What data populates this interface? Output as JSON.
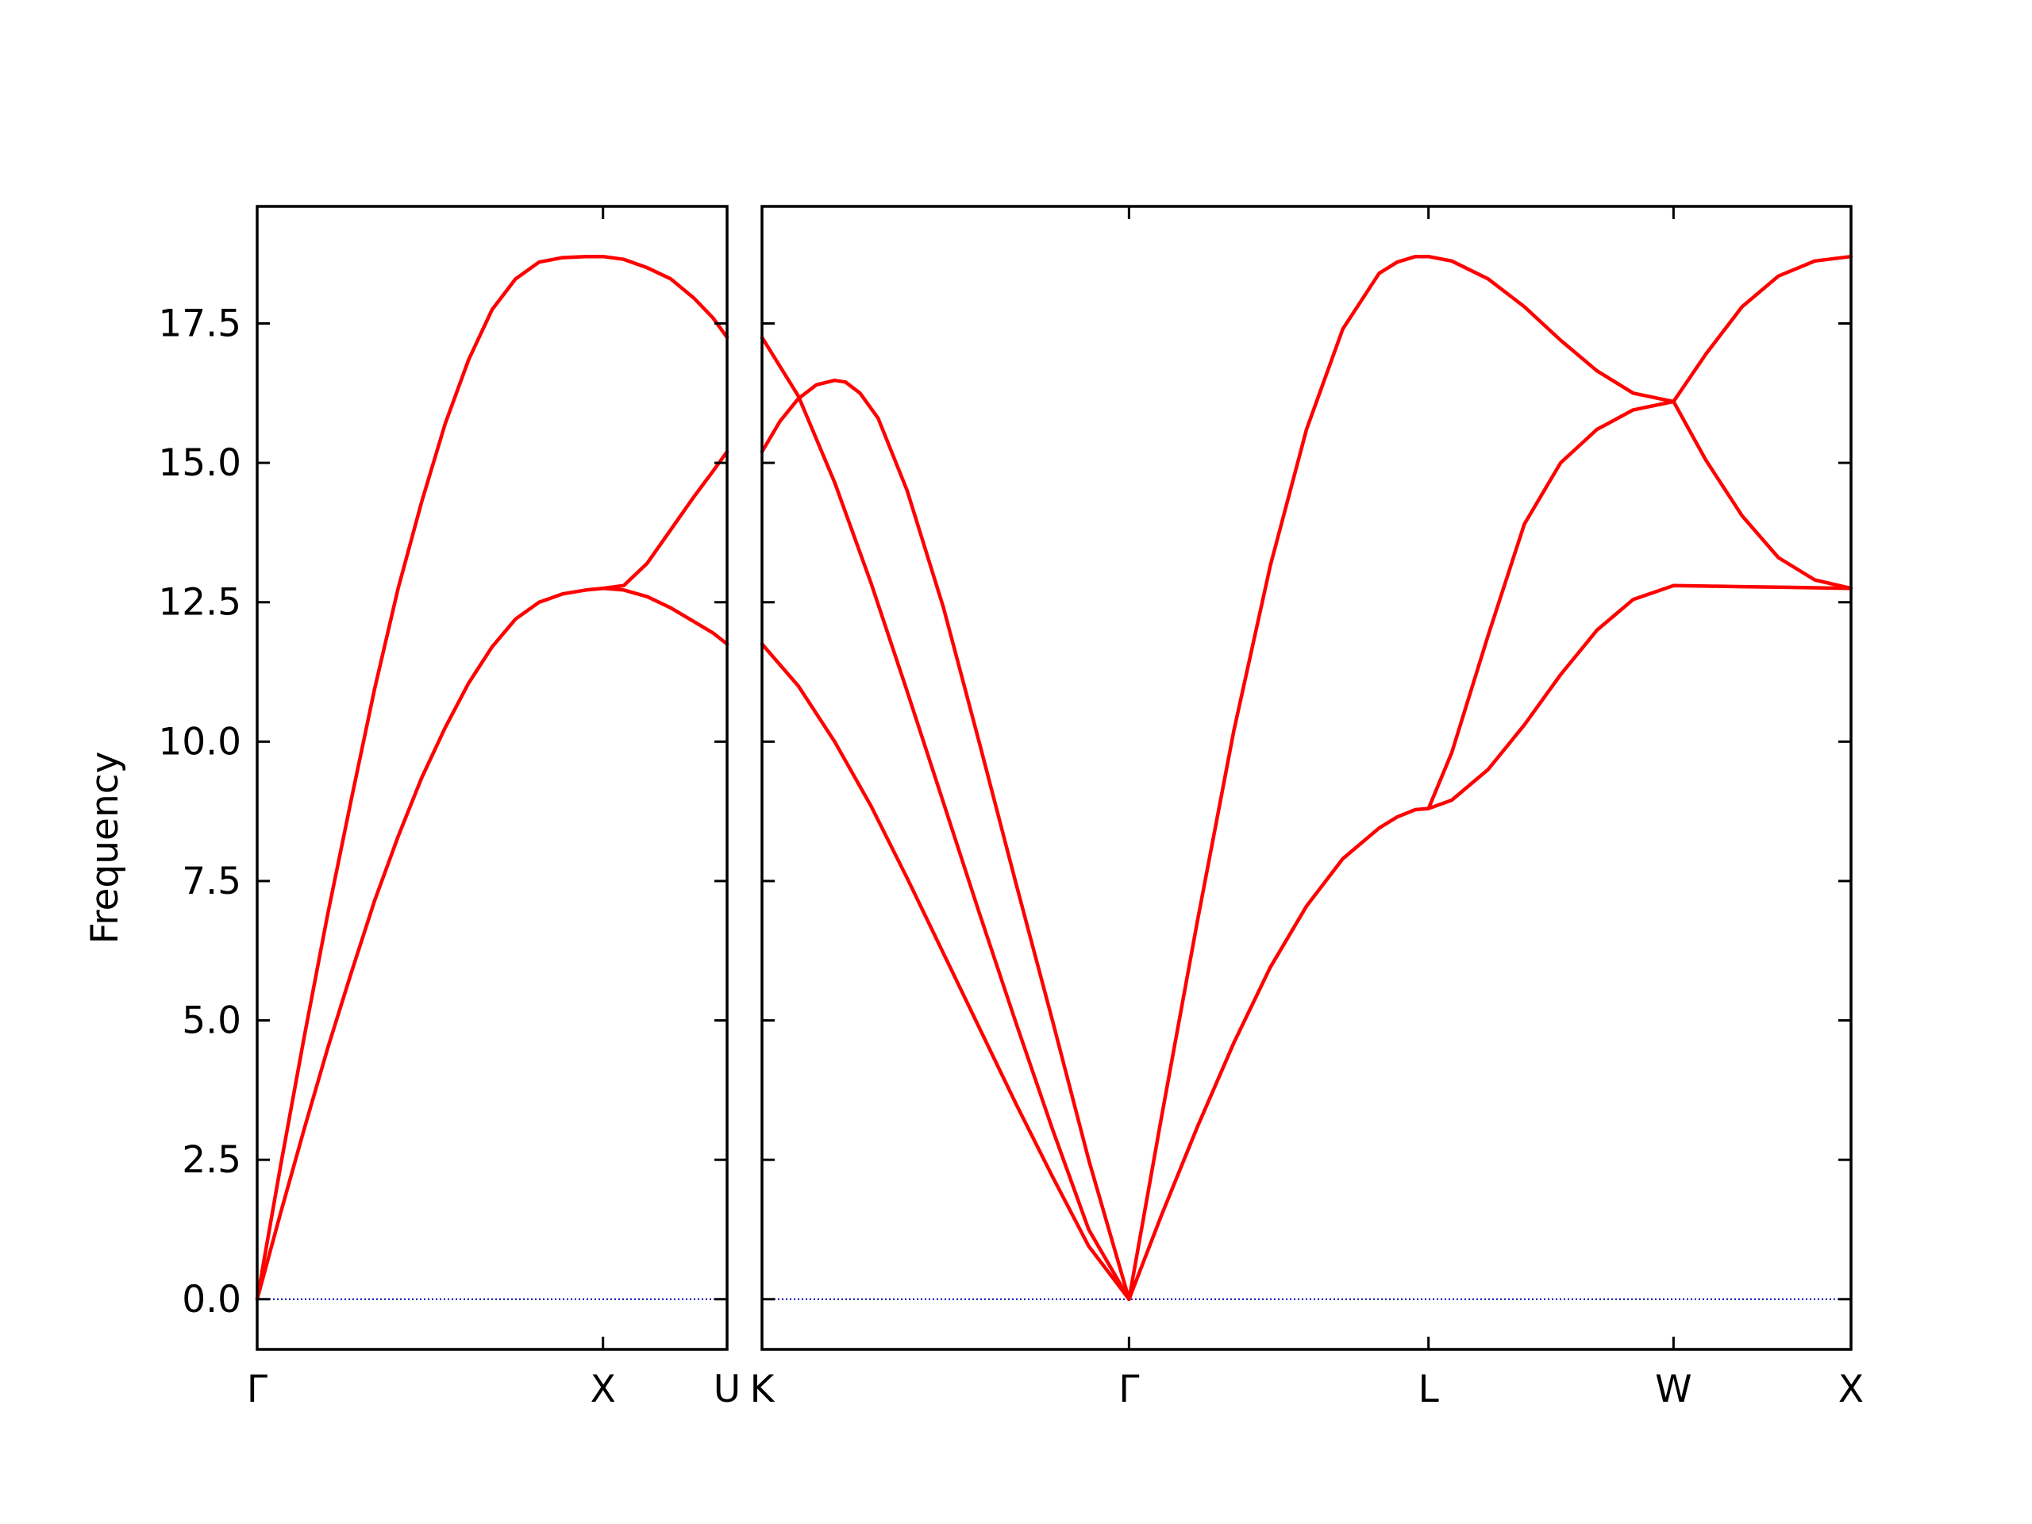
{
  "chart_data": {
    "type": "line",
    "title": "",
    "ylabel": "Frequency",
    "ylim": [
      -0.9,
      19.6
    ],
    "yticks": [
      "0.0",
      "2.5",
      "5.0",
      "7.5",
      "10.0",
      "12.5",
      "15.0",
      "17.5"
    ],
    "ytick_values": [
      0,
      2.5,
      5,
      7.5,
      10,
      12.5,
      15,
      17.5
    ],
    "grid": false,
    "legend": "none",
    "line_color": "#ff0000",
    "zero_line_color": "#0000aa",
    "zero_line": 0,
    "panels": [
      {
        "xlim": [
          0,
          1.0
        ],
        "tick_positions": [
          0,
          0.736,
          1.0
        ],
        "tick_labels": [
          "Γ",
          "X",
          "U"
        ],
        "series": [
          {
            "x": [
              0,
              0.05,
              0.1,
              0.15,
              0.2,
              0.25,
              0.3,
              0.35,
              0.4,
              0.45,
              0.5,
              0.55,
              0.6,
              0.65,
              0.7,
              0.736,
              0.78,
              0.83,
              0.88,
              0.93,
              0.97,
              1.0
            ],
            "y": [
              0,
              2.4,
              4.7,
              6.9,
              8.95,
              10.95,
              12.75,
              14.3,
              15.7,
              16.85,
              17.75,
              18.3,
              18.6,
              18.68,
              18.7,
              18.7,
              18.65,
              18.5,
              18.3,
              17.95,
              17.6,
              17.25
            ]
          },
          {
            "x": [
              0,
              0.05,
              0.1,
              0.15,
              0.2,
              0.25,
              0.3,
              0.35,
              0.4,
              0.45,
              0.5,
              0.55,
              0.6,
              0.65,
              0.7,
              0.736,
              0.78,
              0.83,
              0.88,
              0.93,
              0.97,
              1.0
            ],
            "y": [
              0,
              1.55,
              3.05,
              4.5,
              5.85,
              7.15,
              8.3,
              9.35,
              10.25,
              11.05,
              11.7,
              12.2,
              12.5,
              12.65,
              12.72,
              12.75,
              12.8,
              13.2,
              13.8,
              14.4,
              14.85,
              15.2
            ]
          },
          {
            "x": [
              0.736,
              0.78,
              0.83,
              0.88,
              0.93,
              0.97,
              1.0
            ],
            "y": [
              12.75,
              12.72,
              12.6,
              12.4,
              12.15,
              11.95,
              11.75
            ]
          }
        ]
      },
      {
        "xlim": [
          0,
          3.0
        ],
        "tick_positions": [
          0,
          1.011,
          1.836,
          2.511,
          3.0
        ],
        "tick_labels": [
          "K",
          "Γ",
          "L",
          "W",
          "X"
        ],
        "series": [
          {
            "x": [
              0,
              0.1,
              0.2,
              0.3,
              0.4,
              0.5,
              0.6,
              0.7,
              0.8,
              0.9,
              1.011
            ],
            "y": [
              17.25,
              16.2,
              14.65,
              12.85,
              10.9,
              8.9,
              6.9,
              4.95,
              3.05,
              1.25,
              0
            ]
          },
          {
            "x": [
              0,
              0.05,
              0.1,
              0.15,
              0.2,
              0.23,
              0.27,
              0.32,
              0.4,
              0.5,
              0.6,
              0.7,
              0.8,
              0.9,
              1.011
            ],
            "y": [
              15.2,
              15.75,
              16.15,
              16.4,
              16.48,
              16.45,
              16.25,
              15.8,
              14.5,
              12.4,
              9.95,
              7.45,
              5.0,
              2.5,
              0
            ]
          },
          {
            "x": [
              0,
              0.1,
              0.2,
              0.3,
              0.4,
              0.5,
              0.6,
              0.7,
              0.8,
              0.9,
              1.011
            ],
            "y": [
              11.75,
              11.0,
              10.0,
              8.85,
              7.55,
              6.2,
              4.85,
              3.5,
              2.2,
              0.95,
              0
            ]
          },
          {
            "x": [
              1.011,
              1.1,
              1.2,
              1.3,
              1.4,
              1.5,
              1.6,
              1.7,
              1.75,
              1.8,
              1.836,
              1.9,
              2.0,
              2.1,
              2.2,
              2.3,
              2.4,
              2.511,
              2.6,
              2.7,
              2.8,
              2.9,
              3.0
            ],
            "y": [
              0,
              3.25,
              6.8,
              10.2,
              13.15,
              15.6,
              17.4,
              18.4,
              18.6,
              18.7,
              18.7,
              18.62,
              18.3,
              17.8,
              17.2,
              16.65,
              16.25,
              16.1,
              16.95,
              17.8,
              18.35,
              18.62,
              18.7
            ]
          },
          {
            "x": [
              1.011,
              1.1,
              1.2,
              1.3,
              1.4,
              1.5,
              1.6,
              1.7,
              1.75,
              1.8,
              1.836,
              1.9,
              2.0,
              2.1,
              2.2,
              2.3,
              2.4,
              2.511,
              2.6,
              2.7,
              2.8,
              2.9,
              3.0
            ],
            "y": [
              0,
              1.5,
              3.1,
              4.6,
              5.95,
              7.05,
              7.9,
              8.45,
              8.65,
              8.78,
              8.8,
              8.95,
              9.5,
              10.3,
              11.2,
              12.0,
              12.55,
              12.8,
              12.79,
              12.78,
              12.77,
              12.76,
              12.75
            ]
          },
          {
            "x": [
              1.836,
              1.9,
              2.0,
              2.1,
              2.2,
              2.3,
              2.4,
              2.511,
              2.6,
              2.7,
              2.8,
              2.9,
              3.0
            ],
            "y": [
              8.8,
              9.8,
              11.9,
              13.9,
              15.0,
              15.6,
              15.95,
              16.1,
              15.05,
              14.05,
              13.3,
              12.9,
              12.75
            ]
          }
        ]
      }
    ]
  }
}
